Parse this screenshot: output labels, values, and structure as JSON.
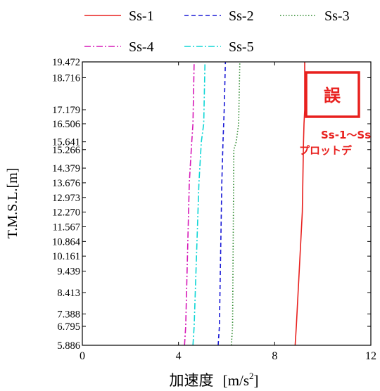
{
  "chart_data": {
    "type": "line",
    "title": "",
    "xlabel": "加速度",
    "xlabel_unit": "[m/s",
    "xlabel_unit_sup": "2",
    "xlabel_unit_close": "]",
    "ylabel": "T.M.S.L.[m]",
    "xlim": [
      0,
      12
    ],
    "xticks": [
      "0",
      "4",
      "8",
      "12"
    ],
    "ylim": [
      5.886,
      19.472
    ],
    "yticks": [
      "19.472",
      "18.716",
      "17.179",
      "16.506",
      "15.641",
      "15.266",
      "14.379",
      "13.676",
      "12.973",
      "12.270",
      "11.567",
      "10.864",
      "10.161",
      "9.439",
      "8.413",
      "7.388",
      "6.795",
      "5.886"
    ],
    "grid": false,
    "legend_position": "top",
    "series": [
      {
        "name": "Ss-1",
        "color": "#e8201e",
        "dash": "solid",
        "x": [
          8.85,
          8.9,
          9.15,
          9.2,
          9.22,
          9.25,
          9.25
        ],
        "y": [
          5.886,
          6.795,
          12.27,
          15.641,
          16.506,
          17.179,
          19.472
        ]
      },
      {
        "name": "Ss-2",
        "color": "#1a1ad6",
        "dash": "dashed",
        "x": [
          5.65,
          5.7,
          5.8,
          5.85,
          5.9,
          5.95
        ],
        "y": [
          5.886,
          6.795,
          13.676,
          15.641,
          17.179,
          19.472
        ]
      },
      {
        "name": "Ss-3",
        "color": "#2f8a2f",
        "dash": "dotted",
        "x": [
          6.2,
          6.25,
          6.3,
          6.4,
          6.5,
          6.55
        ],
        "y": [
          5.886,
          6.795,
          15.266,
          15.641,
          16.506,
          19.472
        ]
      },
      {
        "name": "Ss-4",
        "color": "#d61ab8",
        "dash": "dashdot",
        "x": [
          4.25,
          4.3,
          4.45,
          4.55,
          4.6,
          4.65
        ],
        "y": [
          5.886,
          6.795,
          13.676,
          15.641,
          16.506,
          19.472
        ]
      },
      {
        "name": "Ss-5",
        "color": "#10d6d6",
        "dash": "dashdot",
        "x": [
          4.6,
          4.65,
          4.85,
          4.95,
          5.05,
          5.1
        ],
        "y": [
          5.886,
          6.795,
          13.676,
          15.641,
          16.506,
          19.472
        ]
      }
    ],
    "annotations": {
      "error_label": "誤",
      "note_line1": "Ss-1～Ss",
      "note_line2": "プロットデ",
      "color": "#e8201e"
    }
  }
}
